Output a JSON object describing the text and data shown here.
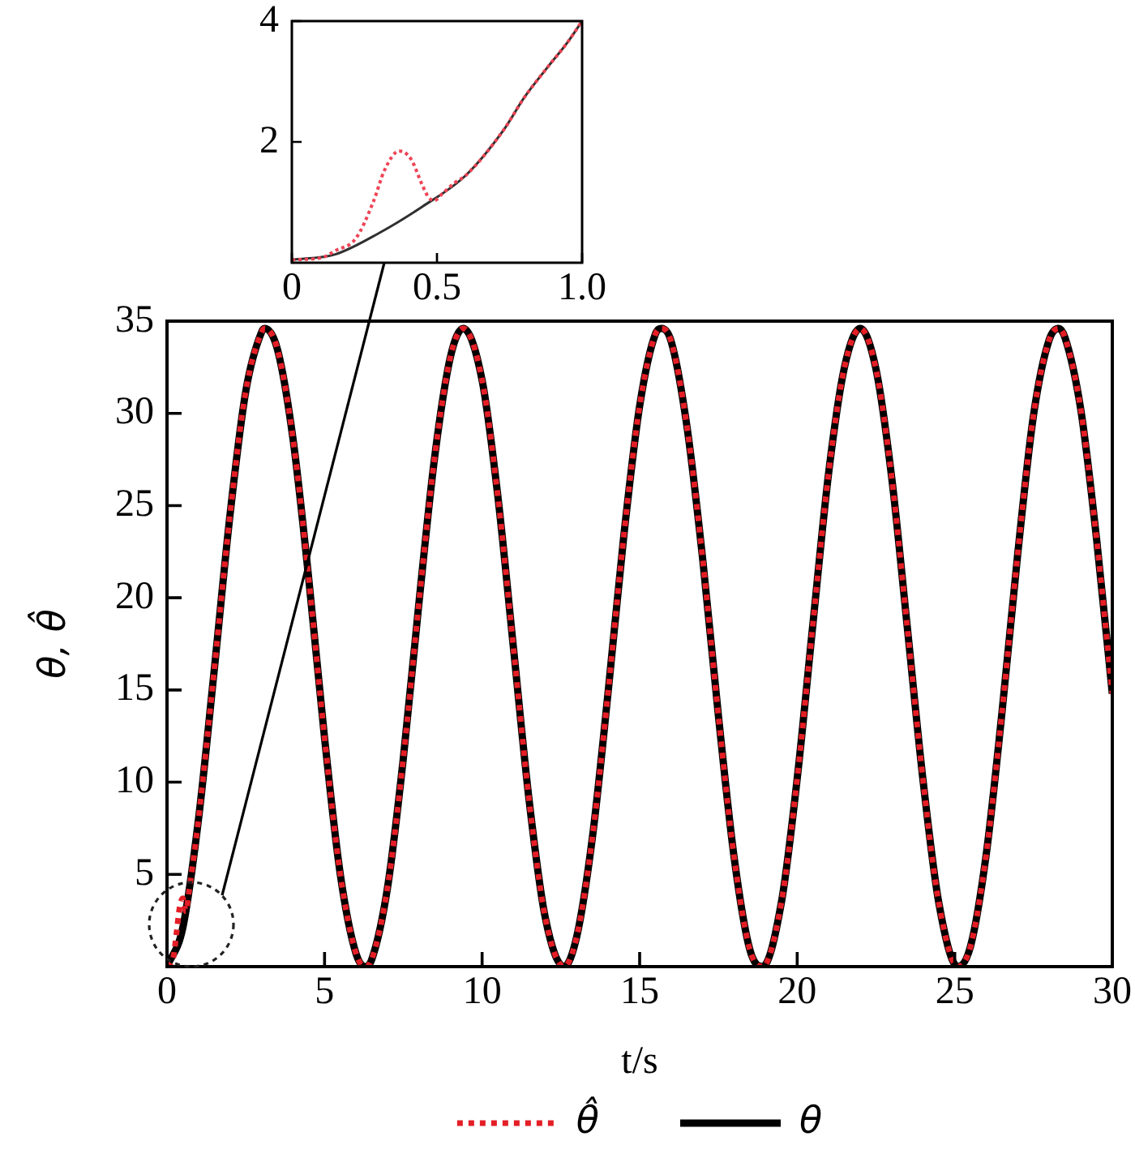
{
  "chart_data": [
    {
      "type": "line",
      "xlim": [
        0,
        1
      ],
      "xticks": [
        0,
        0.5,
        {
          "value": 1,
          "label": "1.0"
        }
      ],
      "ylim": [
        0,
        4
      ],
      "yticks": [
        2,
        4
      ],
      "series": [
        {
          "color": "#ee4455",
          "line_style": "dotted",
          "x": [
            0,
            0.1,
            0.15,
            0.22,
            0.28,
            0.32,
            0.37,
            0.41,
            0.45,
            0.47,
            0.49,
            0.52,
            0.56,
            0.6,
            0.73,
            0.8,
            0.88,
            0.95,
            1.0
          ],
          "values": [
            0.05,
            0.08,
            0.2,
            0.4,
            1.0,
            1.54,
            1.85,
            1.72,
            1.28,
            1.09,
            1.03,
            1.15,
            1.32,
            1.45,
            2.2,
            2.73,
            3.23,
            3.65,
            4.0
          ]
        },
        {
          "color": "#303030",
          "line_style": "solid",
          "x": [
            0,
            0.15,
            0.3,
            0.45,
            0.6,
            0.73,
            0.8,
            0.88,
            0.95,
            1.0
          ],
          "values": [
            0.05,
            0.14,
            0.49,
            0.93,
            1.45,
            2.2,
            2.73,
            3.23,
            3.65,
            4.0
          ]
        }
      ]
    },
    {
      "type": "line",
      "xlabel": "t/s",
      "ylabel": "θ, θ̂",
      "xlim": [
        0,
        30
      ],
      "xticks": [
        0,
        5,
        10,
        15,
        20,
        25,
        30
      ],
      "ylim": [
        0,
        35
      ],
      "yticks": [
        5,
        10,
        15,
        20,
        25,
        30,
        35
      ],
      "legend": "bottom",
      "series": [
        {
          "name": "θ̂",
          "color": "#e41e26",
          "line_style": "dotted",
          "x": [
            0,
            0.2,
            0.3,
            0.4,
            0.5,
            0.6,
            0.7,
            1,
            1.5,
            2,
            2.5,
            3,
            3.1,
            3.5,
            4,
            4.5,
            5,
            5.5,
            6,
            6.3,
            6.5,
            7,
            7.5,
            8,
            8.5,
            9,
            9.4,
            10,
            10.5,
            11,
            11.5,
            12,
            12.6,
            13,
            13.5,
            14,
            14.5,
            15,
            15.5,
            15.7,
            16,
            16.5,
            17,
            17.5,
            18,
            18.5,
            18.9,
            19.5,
            20,
            20.5,
            21,
            21.5,
            22,
            22.5,
            23,
            23.5,
            24,
            24.5,
            25.1,
            25.5,
            26,
            26.5,
            27,
            27.5,
            28,
            28.3,
            28.5,
            29,
            29.5,
            30
          ],
          "values": [
            0,
            0.5,
            1.8,
            3.2,
            3.7,
            3.0,
            4.1,
            8.0,
            16.1,
            24.5,
            31.2,
            34.4,
            34.6,
            33.5,
            28.6,
            21.0,
            12.4,
            5.0,
            0.7,
            0,
            0.4,
            4.3,
            11.3,
            19.8,
            27.7,
            33.1,
            34.6,
            31.8,
            25.5,
            17.2,
            8.9,
            2.7,
            0,
            1.6,
            7.0,
            14.9,
            23.4,
            30.4,
            34.3,
            34.6,
            33.9,
            29.3,
            22.1,
            13.6,
            5.9,
            0.9,
            0,
            3.5,
            10.2,
            18.6,
            26.8,
            32.5,
            34.6,
            32.4,
            26.5,
            18.3,
            10.0,
            3.4,
            0,
            1.1,
            6.1,
            13.8,
            22.4,
            29.9,
            34.0,
            34.6,
            34.1,
            30.2,
            23.2,
            14.8
          ]
        },
        {
          "name": "θ",
          "color": "#000000",
          "line_style": "solid",
          "x": [
            0,
            0.5,
            1,
            1.5,
            2,
            2.5,
            3,
            3.1,
            3.5,
            4,
            4.5,
            5,
            5.5,
            6,
            6.3,
            6.5,
            7,
            7.5,
            8,
            8.5,
            9,
            9.4,
            10,
            10.5,
            11,
            11.5,
            12,
            12.6,
            13,
            13.5,
            14,
            14.5,
            15,
            15.5,
            15.7,
            16,
            16.5,
            17,
            17.5,
            18,
            18.5,
            18.9,
            19.5,
            20,
            20.5,
            21,
            21.5,
            22,
            22.5,
            23,
            23.5,
            24,
            24.5,
            25.1,
            25.5,
            26,
            26.5,
            27,
            27.5,
            28,
            28.3,
            28.5,
            29,
            29.5,
            30
          ],
          "values": [
            0,
            2.1,
            8.0,
            16.1,
            24.5,
            31.2,
            34.4,
            34.6,
            33.5,
            28.6,
            21.0,
            12.4,
            5.0,
            0.7,
            0,
            0.4,
            4.3,
            11.3,
            19.8,
            27.7,
            33.1,
            34.6,
            31.8,
            25.5,
            17.2,
            8.9,
            2.7,
            0,
            1.6,
            7.0,
            14.9,
            23.4,
            30.4,
            34.3,
            34.6,
            33.9,
            29.3,
            22.1,
            13.6,
            5.9,
            0.9,
            0,
            3.5,
            10.2,
            18.6,
            26.8,
            32.5,
            34.6,
            32.4,
            26.5,
            18.3,
            10.0,
            3.4,
            0,
            1.1,
            6.1,
            13.8,
            22.4,
            29.9,
            34.0,
            34.6,
            34.1,
            30.2,
            23.2,
            14.8
          ]
        }
      ]
    }
  ]
}
